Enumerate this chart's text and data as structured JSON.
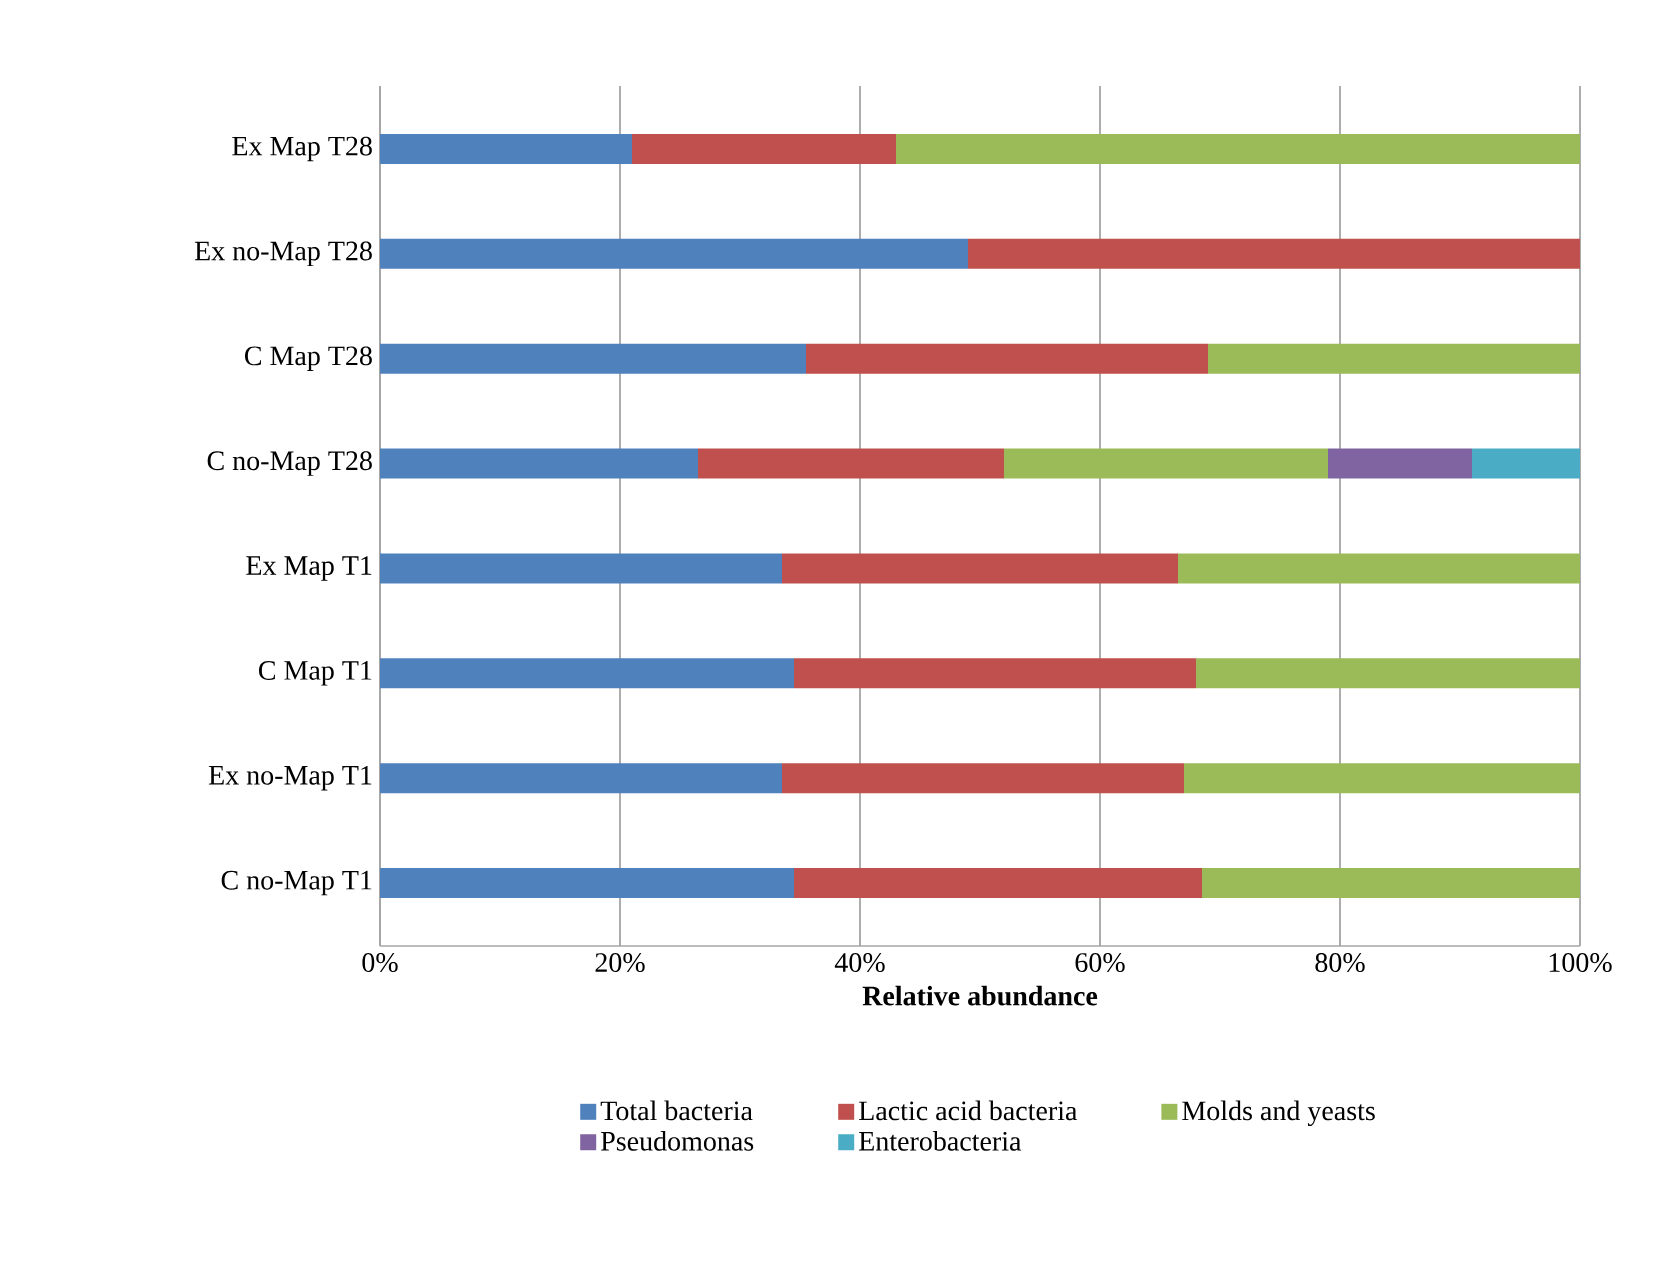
{
  "chart_data": {
    "type": "bar",
    "orientation": "horizontal",
    "stacked": true,
    "xlabel": "Relative abundance",
    "categories": [
      "Ex Map T28",
      "Ex no-Map T28",
      "C Map T28",
      "C no-Map T28",
      "Ex Map T1",
      "C Map T1",
      "Ex no-Map T1",
      "C no-Map T1"
    ],
    "series": [
      {
        "name": "Total bacteria",
        "color": "#4f81bd",
        "values": [
          21,
          49,
          35.5,
          26.5,
          33.5,
          34.5,
          33.5,
          34.5
        ]
      },
      {
        "name": "Lactic acid bacteria",
        "color": "#c0504d",
        "values": [
          22,
          51,
          33.5,
          25.5,
          33,
          33.5,
          33.5,
          34
        ]
      },
      {
        "name": "Molds and yeasts",
        "color": "#9bbb59",
        "values": [
          57,
          null,
          31,
          27,
          33.5,
          32,
          33,
          31.5
        ]
      },
      {
        "name": "Pseudomonas",
        "color": "#8064a2",
        "values": [
          null,
          null,
          null,
          12,
          null,
          null,
          null,
          null
        ]
      },
      {
        "name": "Enterobacteria",
        "color": "#4bacc6",
        "values": [
          null,
          null,
          null,
          9,
          null,
          null,
          null,
          null
        ]
      }
    ],
    "xlim": [
      0,
      100
    ],
    "xticks": [
      {
        "value": 0,
        "label": "0%"
      },
      {
        "value": 20,
        "label": "20%"
      },
      {
        "value": 40,
        "label": "40%"
      },
      {
        "value": 60,
        "label": "60%"
      },
      {
        "value": 80,
        "label": "80%"
      },
      {
        "value": 100,
        "label": "100%"
      }
    ],
    "grid": "x",
    "legend": "bottom"
  }
}
